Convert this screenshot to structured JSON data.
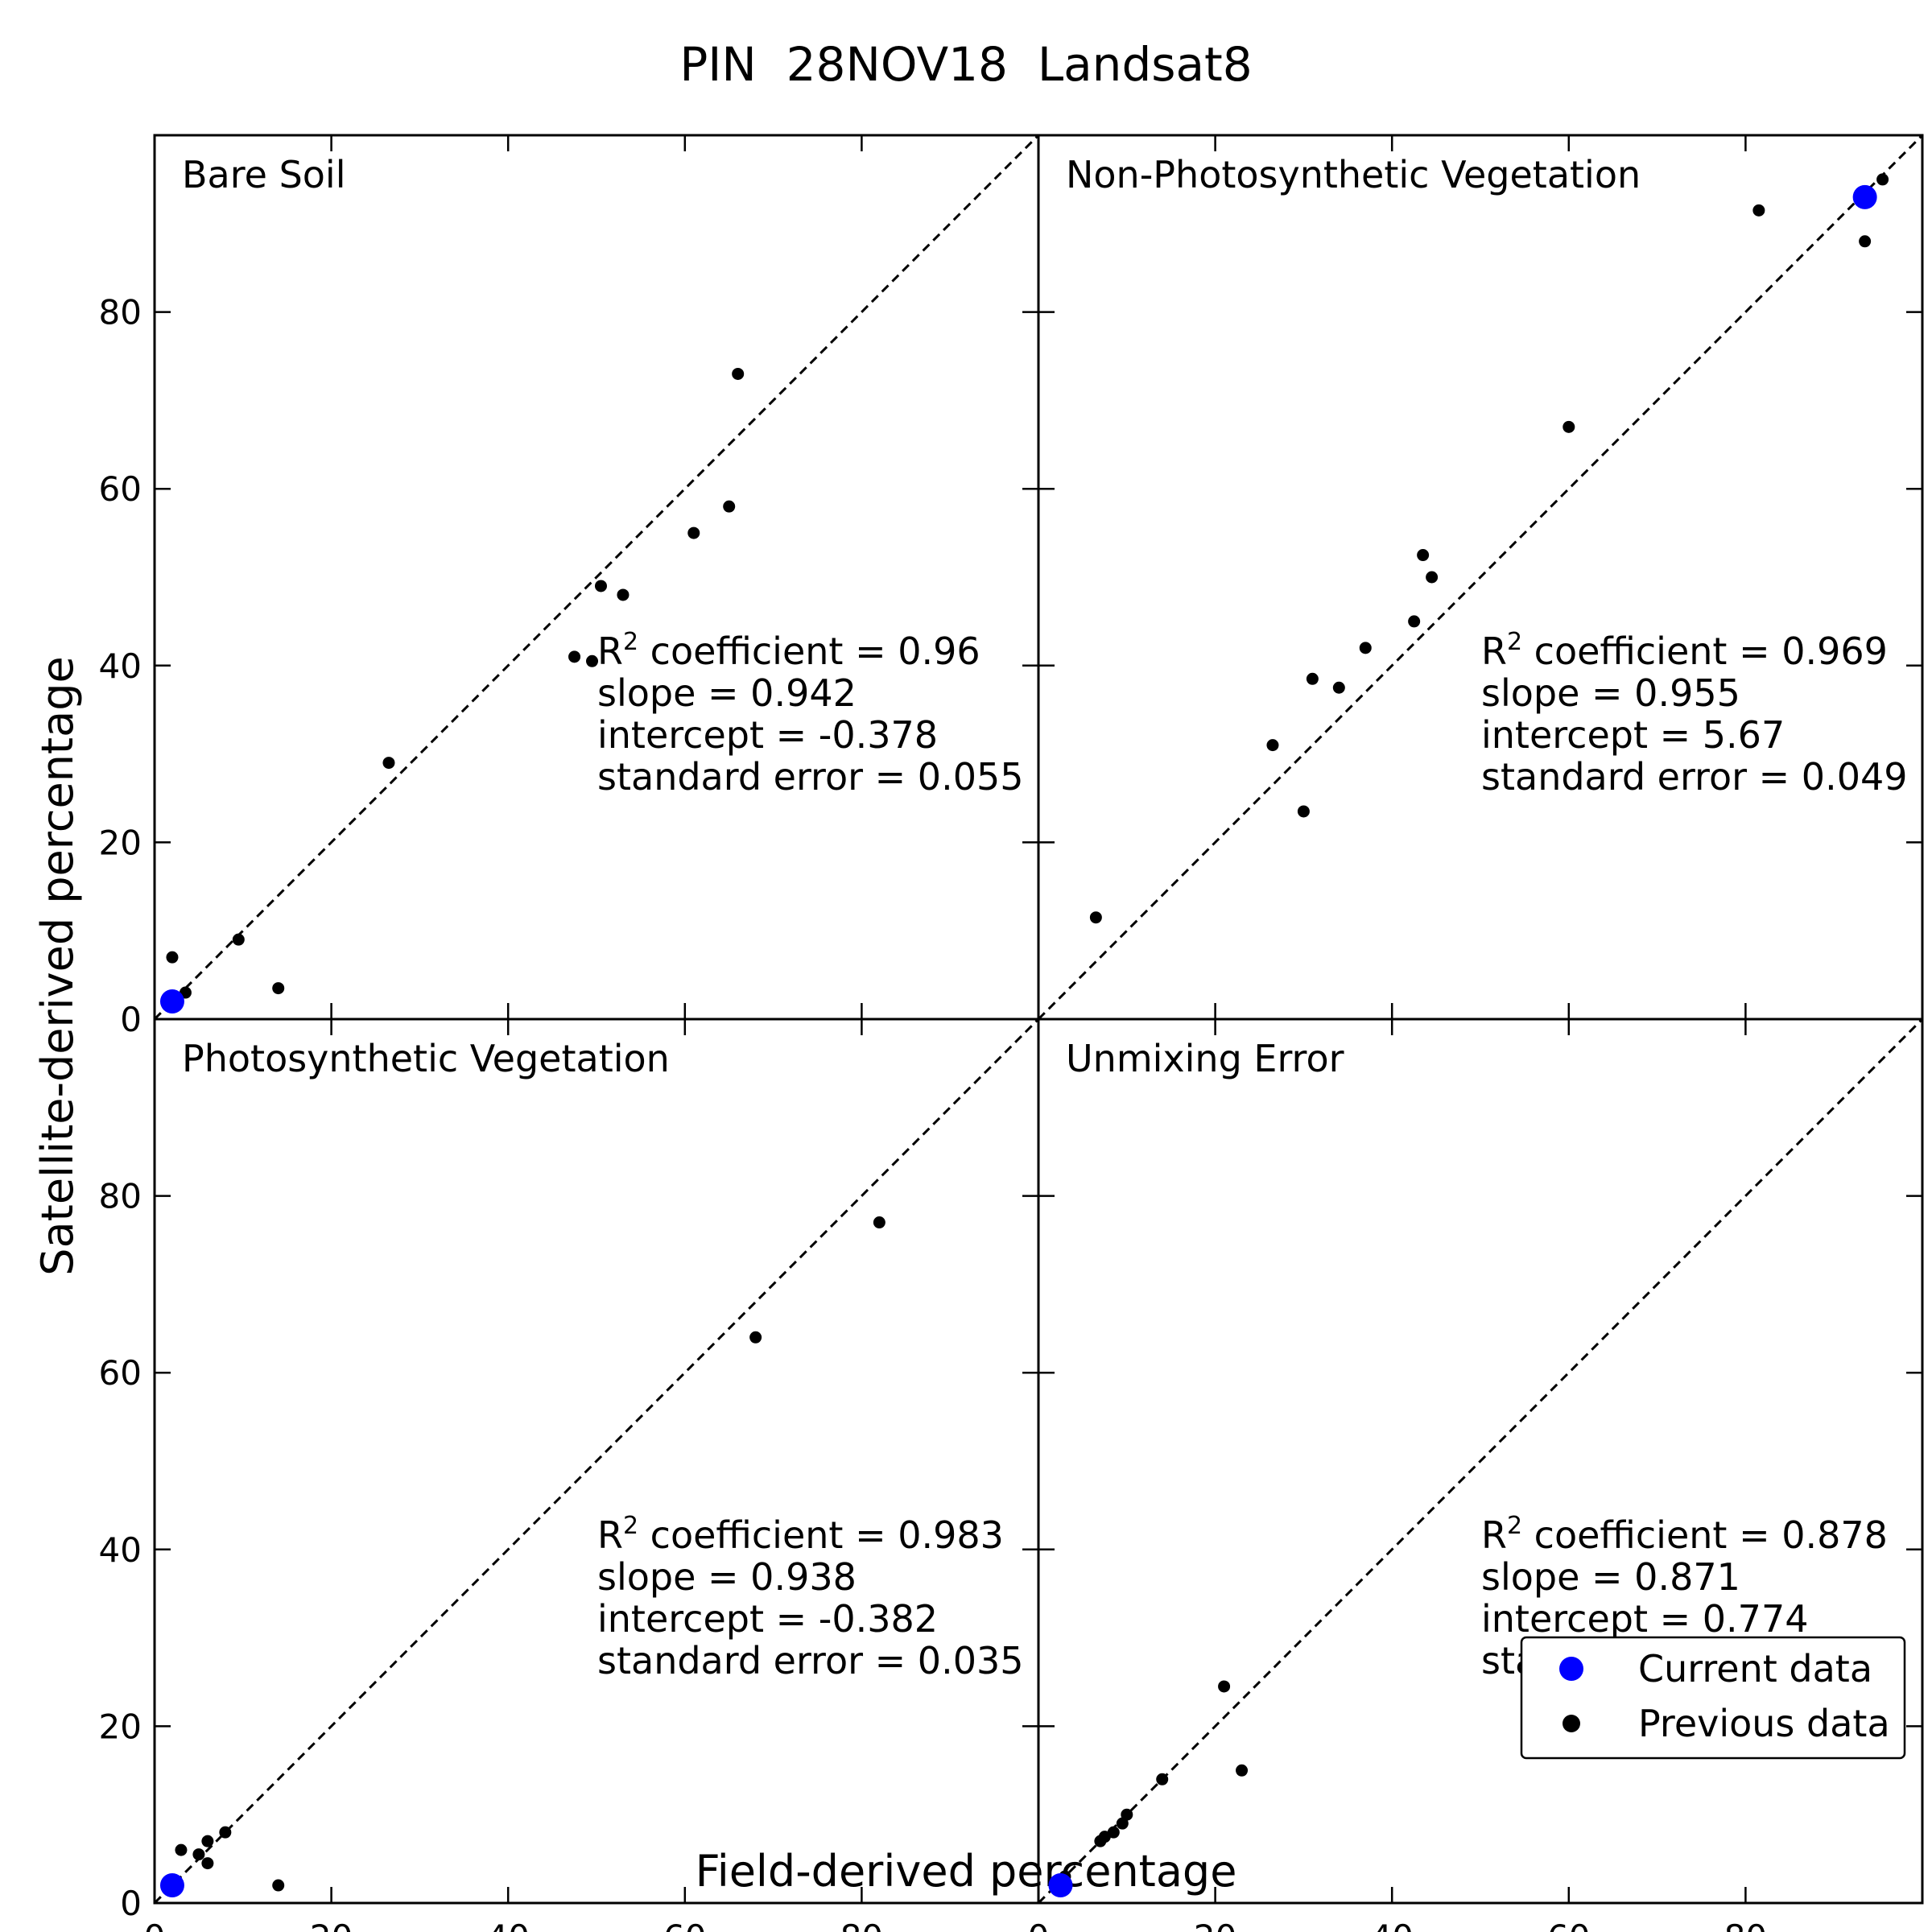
{
  "figure": {
    "title": "PIN  28NOV18  Landsat8",
    "xlabel": "Field-derived percentage",
    "ylabel": "Satellite-derived percentage"
  },
  "legend": {
    "placement": "bottom-right of bottom-right panel",
    "items": [
      {
        "label": "Current data",
        "color": "#0000ff"
      },
      {
        "label": "Previous data",
        "color": "#000000"
      }
    ]
  },
  "chart_data": [
    {
      "type": "scatter",
      "title": "Bare Soil",
      "xlim": [
        0,
        100
      ],
      "ylim": [
        0,
        100
      ],
      "ticks": [
        0,
        20,
        40,
        60,
        80
      ],
      "reference_line": "1:1 dashed",
      "stats": [
        "coefficient = 0.96",
        "slope = 0.942",
        "intercept = -0.378",
        "standard error = 0.055"
      ],
      "series": [
        {
          "name": "Current data",
          "color": "#0000ff",
          "points": [
            [
              2,
              2
            ]
          ]
        },
        {
          "name": "Previous data",
          "color": "#000000",
          "points": [
            [
              2,
              7
            ],
            [
              3.5,
              3
            ],
            [
              9.5,
              9
            ],
            [
              14,
              3.5
            ],
            [
              26.5,
              29
            ],
            [
              47.5,
              41
            ],
            [
              49.5,
              40.5
            ],
            [
              50.5,
              49
            ],
            [
              53,
              48
            ],
            [
              61,
              55
            ],
            [
              65,
              58
            ],
            [
              66,
              73
            ]
          ]
        }
      ]
    },
    {
      "type": "scatter",
      "title": "Non-Photosynthetic Vegetation",
      "xlim": [
        0,
        100
      ],
      "ylim": [
        0,
        100
      ],
      "ticks": [
        0,
        20,
        40,
        60,
        80
      ],
      "reference_line": "1:1 dashed",
      "stats": [
        "coefficient = 0.969",
        "slope = 0.955",
        "intercept = 5.67",
        "standard error = 0.049"
      ],
      "series": [
        {
          "name": "Current data",
          "color": "#0000ff",
          "points": [
            [
              93.5,
              93
            ]
          ]
        },
        {
          "name": "Previous data",
          "color": "#000000",
          "points": [
            [
              6.5,
              11.5
            ],
            [
              26.5,
              31
            ],
            [
              30,
              23.5
            ],
            [
              31,
              38.5
            ],
            [
              34,
              37.5
            ],
            [
              37,
              42
            ],
            [
              42.5,
              45
            ],
            [
              43.5,
              52.5
            ],
            [
              44.5,
              50
            ],
            [
              60,
              67
            ],
            [
              81.5,
              91.5
            ],
            [
              93.5,
              88
            ],
            [
              95.5,
              95
            ]
          ]
        }
      ]
    },
    {
      "type": "scatter",
      "title": "Photosynthetic Vegetation",
      "xlim": [
        0,
        100
      ],
      "ylim": [
        0,
        100
      ],
      "ticks": [
        0,
        20,
        40,
        60,
        80
      ],
      "reference_line": "1:1 dashed",
      "stats": [
        "coefficient = 0.983",
        "slope = 0.938",
        "intercept = -0.382",
        "standard error = 0.035"
      ],
      "series": [
        {
          "name": "Current data",
          "color": "#0000ff",
          "points": [
            [
              2,
              2
            ]
          ]
        },
        {
          "name": "Previous data",
          "color": "#000000",
          "points": [
            [
              3,
              6
            ],
            [
              5,
              5.5
            ],
            [
              6,
              7
            ],
            [
              6,
              4.5
            ],
            [
              8,
              8
            ],
            [
              14,
              2
            ],
            [
              68,
              64
            ],
            [
              82,
              77
            ]
          ]
        }
      ]
    },
    {
      "type": "scatter",
      "title": "Unmixing Error",
      "xlim": [
        0,
        100
      ],
      "ylim": [
        0,
        100
      ],
      "ticks": [
        0,
        20,
        40,
        60,
        80
      ],
      "reference_line": "1:1 dashed",
      "stats": [
        "coefficient = 0.878",
        "slope = 0.871",
        "intercept = 0.774",
        "standard error = 0.094"
      ],
      "series": [
        {
          "name": "Current data",
          "color": "#0000ff",
          "points": [
            [
              2.5,
              2
            ]
          ]
        },
        {
          "name": "Previous data",
          "color": "#000000",
          "points": [
            [
              3,
              3
            ],
            [
              7,
              7
            ],
            [
              7.5,
              7.5
            ],
            [
              8.5,
              8
            ],
            [
              9.5,
              9
            ],
            [
              10,
              10
            ],
            [
              14,
              14
            ],
            [
              21,
              24.5
            ],
            [
              23,
              15
            ]
          ]
        }
      ]
    }
  ]
}
